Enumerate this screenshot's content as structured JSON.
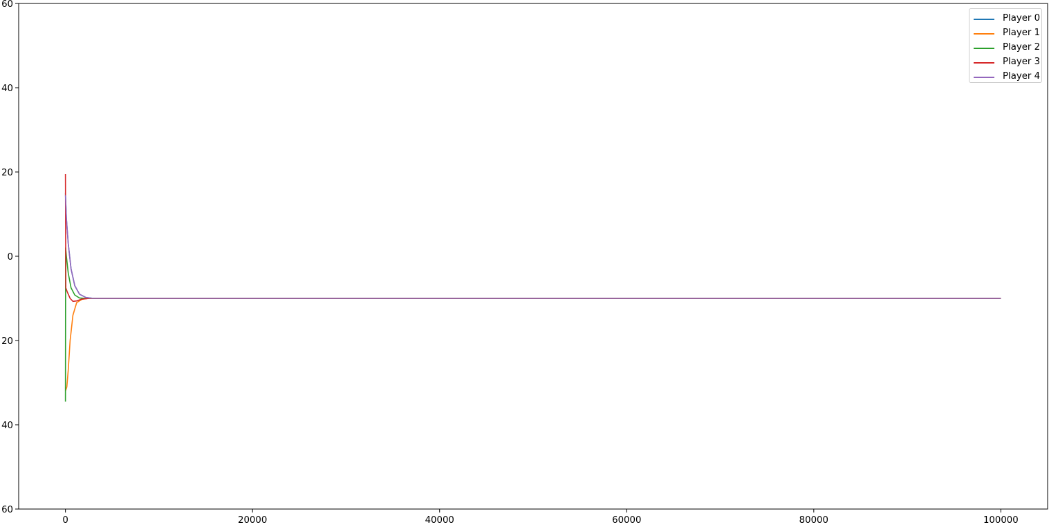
{
  "chart_data": {
    "type": "line",
    "title": "",
    "xlabel": "",
    "ylabel": "",
    "xlim": [
      -5000,
      105000
    ],
    "ylim": [
      -60,
      60
    ],
    "x_ticks": [
      0,
      20000,
      40000,
      60000,
      80000,
      100000
    ],
    "x_tick_labels": [
      "0",
      "20000",
      "40000",
      "60000",
      "80000",
      "100000"
    ],
    "y_ticks": [
      -60,
      -40,
      -20,
      0,
      20,
      40,
      60
    ],
    "y_tick_labels": [
      "60",
      "40",
      "20",
      "0",
      "20",
      "40",
      "60"
    ],
    "grid": false,
    "legend_position": "top-right",
    "series": [
      {
        "name": "Player 0",
        "color": "#1f77b4",
        "points": [
          [
            0,
            15
          ],
          [
            100,
            9
          ],
          [
            300,
            3
          ],
          [
            600,
            -3
          ],
          [
            1000,
            -7
          ],
          [
            1500,
            -9
          ],
          [
            2200,
            -9.8
          ],
          [
            3000,
            -10
          ],
          [
            10000,
            -10
          ],
          [
            50000,
            -10
          ],
          [
            100000,
            -10
          ]
        ]
      },
      {
        "name": "Player 1",
        "color": "#ff7f0e",
        "points": [
          [
            0,
            -32
          ],
          [
            150,
            -31
          ],
          [
            300,
            -27
          ],
          [
            500,
            -20
          ],
          [
            800,
            -14
          ],
          [
            1200,
            -11
          ],
          [
            1800,
            -10.2
          ],
          [
            2500,
            -10
          ],
          [
            10000,
            -10
          ],
          [
            50000,
            -10
          ],
          [
            100000,
            -10
          ]
        ]
      },
      {
        "name": "Player 2",
        "color": "#2ca02c",
        "points": [
          [
            0,
            -34.5
          ],
          [
            20,
            2
          ],
          [
            100,
            0
          ],
          [
            300,
            -4
          ],
          [
            600,
            -7.5
          ],
          [
            1000,
            -9.2
          ],
          [
            1500,
            -9.9
          ],
          [
            2200,
            -10
          ],
          [
            10000,
            -10
          ],
          [
            50000,
            -10
          ],
          [
            100000,
            -10
          ]
        ]
      },
      {
        "name": "Player 3",
        "color": "#d62728",
        "points": [
          [
            0,
            19.5
          ],
          [
            40,
            -7.5
          ],
          [
            200,
            -8.5
          ],
          [
            500,
            -10
          ],
          [
            800,
            -10.7
          ],
          [
            1200,
            -10.6
          ],
          [
            1700,
            -10.2
          ],
          [
            2500,
            -10
          ],
          [
            10000,
            -10
          ],
          [
            50000,
            -10
          ],
          [
            100000,
            -10
          ]
        ]
      },
      {
        "name": "Player 4",
        "color": "#9467bd",
        "points": [
          [
            0,
            14.5
          ],
          [
            100,
            9
          ],
          [
            300,
            3
          ],
          [
            600,
            -3
          ],
          [
            1000,
            -7
          ],
          [
            1500,
            -9
          ],
          [
            2200,
            -9.8
          ],
          [
            3000,
            -10
          ],
          [
            10000,
            -10
          ],
          [
            50000,
            -10
          ],
          [
            100000,
            -10
          ]
        ]
      }
    ]
  }
}
